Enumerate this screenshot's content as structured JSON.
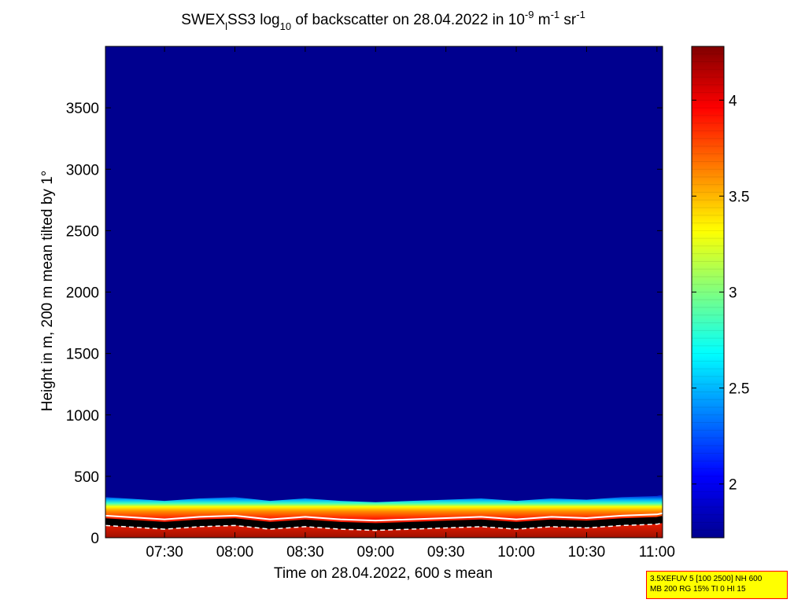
{
  "chart_data": {
    "type": "heatmap",
    "title": {
      "pre": "SWEX",
      "sub1": "l",
      "mid": "SS3 log",
      "sub2": "10",
      "post": " of backscatter on 28.04.2022 in 10",
      "sup1": "-9",
      "m_unit": " m",
      "sup2": "-1",
      "sr_unit": " sr",
      "sup3": "-1"
    },
    "xlabel": "Time on 28.04.2022, 600 s mean",
    "ylabel": "Height in m, 200 m mean tilted by 1°",
    "x_tick_labels": [
      "07:30",
      "08:00",
      "08:30",
      "09:00",
      "09:30",
      "10:00",
      "10:30",
      "11:00"
    ],
    "x_ticks_hours": [
      7.5,
      8.0,
      8.5,
      9.0,
      9.5,
      10.0,
      10.5,
      11.0
    ],
    "x_range_hours": [
      7.08,
      11.04
    ],
    "y_ticks": [
      0,
      500,
      1000,
      1500,
      2000,
      2500,
      3000,
      3500
    ],
    "y_range": [
      0,
      4000
    ],
    "colorbar": {
      "colormap": "jet",
      "range": [
        1.72,
        4.28
      ],
      "ticks": [
        2,
        2.5,
        3,
        3.5,
        4
      ],
      "tick_labels": [
        "2",
        "2.5",
        "3",
        "3.5",
        "4"
      ]
    },
    "boundary_layer": {
      "time_hours": [
        7.08,
        7.5,
        7.75,
        8.0,
        8.25,
        8.5,
        8.75,
        9.0,
        9.25,
        9.5,
        9.75,
        10.0,
        10.25,
        10.5,
        10.75,
        11.0,
        11.04
      ],
      "top_height_m": [
        330,
        300,
        320,
        330,
        300,
        320,
        300,
        290,
        300,
        310,
        320,
        300,
        320,
        310,
        330,
        340,
        350
      ]
    },
    "background_value": 1.8,
    "grid": false
  },
  "info_box": {
    "line1": "3.5XEFUV 5 [100 2500] NH 600",
    "line2": "MB 200 RG 15% TI 0 HI 15"
  }
}
